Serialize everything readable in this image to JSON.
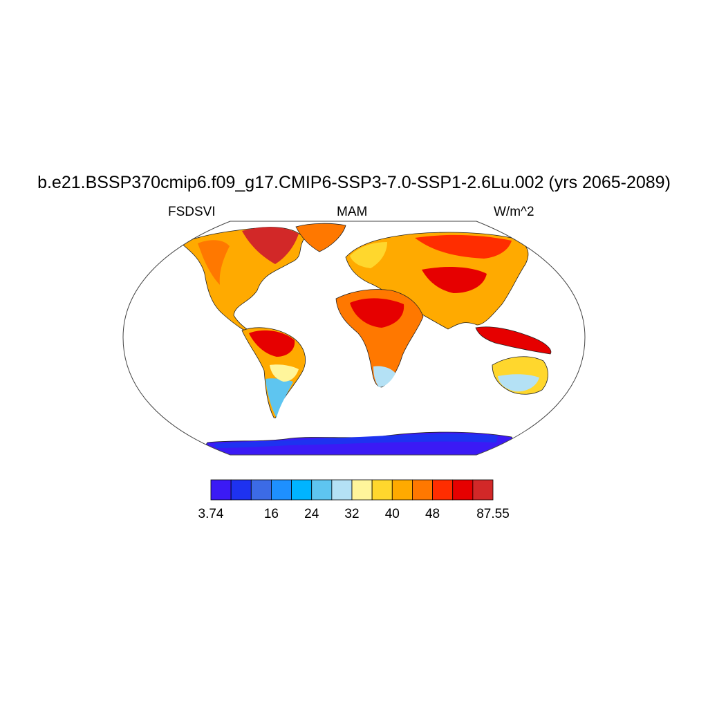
{
  "title": "b.e21.BSSP370cmip6.f09_g17.CMIP6-SSP3-7.0-SSP1-2.6Lu.002 (yrs 2065-2089)",
  "left_label": "FSDSVI",
  "center_label": "MAM",
  "right_label": "W/m^2",
  "colorbar": {
    "colors": [
      "#3b1af5",
      "#1e32f0",
      "#3c6be6",
      "#1e90ff",
      "#00b4ff",
      "#5ec5f0",
      "#b4e1f5",
      "#fff59b",
      "#ffd72d",
      "#ffaa00",
      "#ff7800",
      "#ff2d00",
      "#e60000",
      "#d22828"
    ],
    "tick_labels": [
      "3.74",
      "16",
      "24",
      "32",
      "40",
      "48",
      "87.55"
    ]
  },
  "map_colors": {
    "antarctica": "#3b1af5",
    "antarctica_coast": "#1e32f0",
    "hot": "#e60000",
    "warm": "#ff7800",
    "mild": "#ffaa00",
    "yellow": "#ffd72d",
    "pale": "#b4e1f5"
  }
}
